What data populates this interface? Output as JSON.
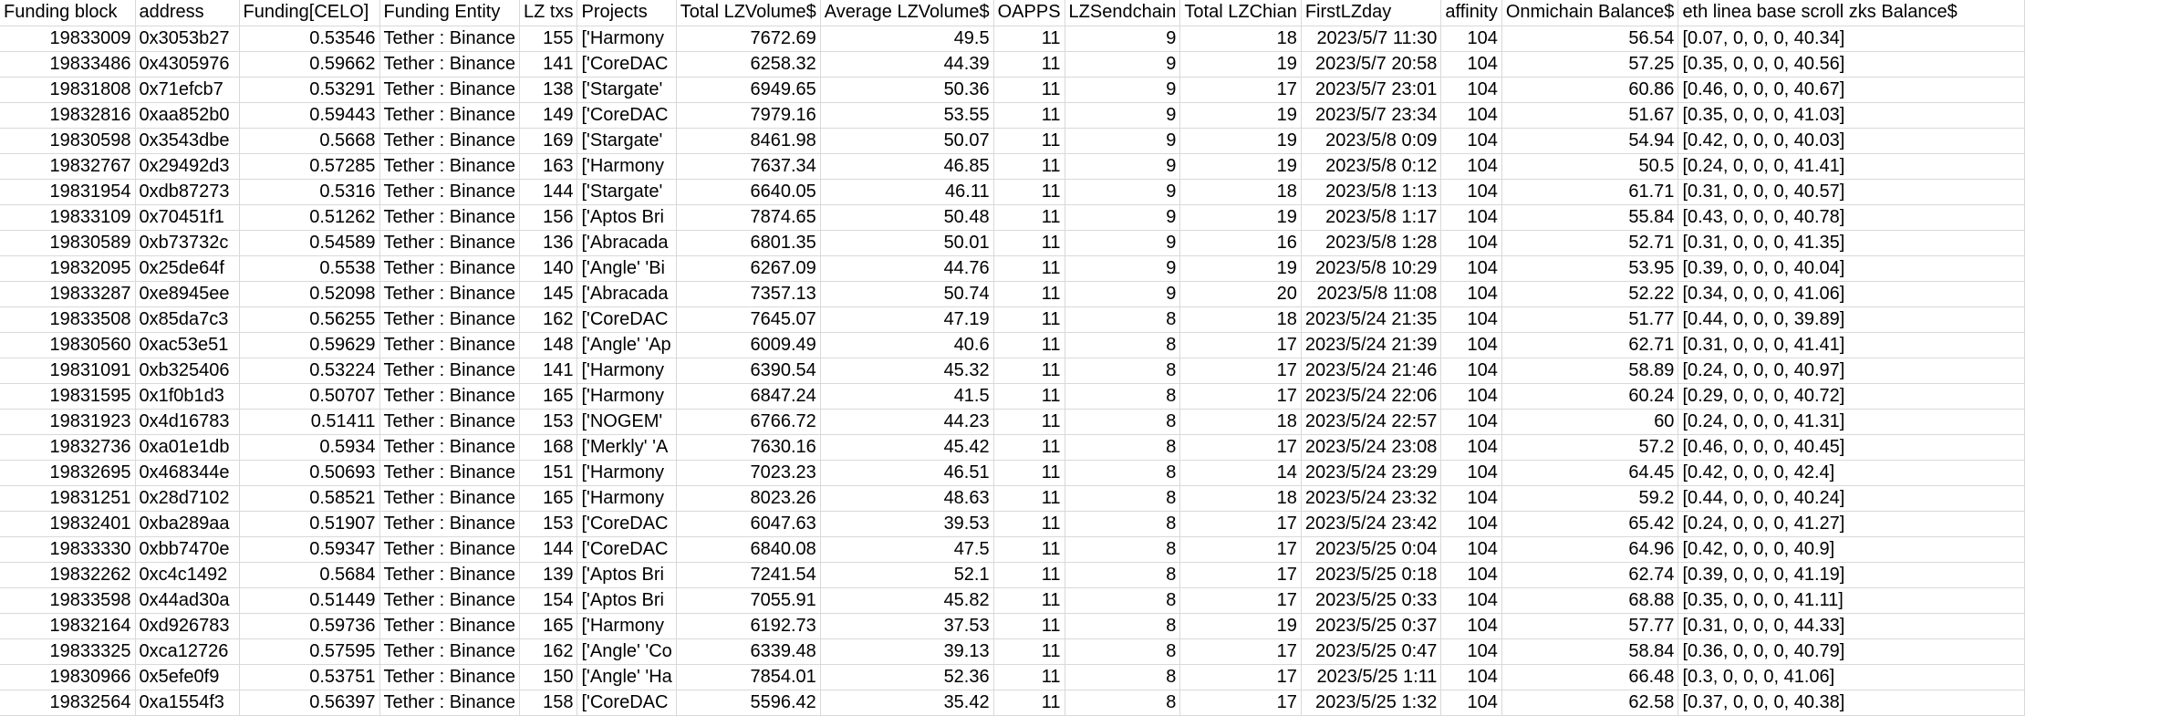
{
  "columns": [
    {
      "key": "funding_block",
      "label": "Funding block",
      "align": "num"
    },
    {
      "key": "address",
      "label": "address",
      "align": "txt"
    },
    {
      "key": "funding_celo",
      "label": "Funding[CELO]",
      "align": "num"
    },
    {
      "key": "funding_entity",
      "label": "Funding Entity",
      "align": "txt"
    },
    {
      "key": "lz_txs",
      "label": "LZ txs",
      "align": "num"
    },
    {
      "key": "projects",
      "label": "Projects",
      "align": "txt"
    },
    {
      "key": "total_lzvolume",
      "label": "Total LZVolume$",
      "align": "num"
    },
    {
      "key": "avg_lzvolume",
      "label": "Average LZVolume$",
      "align": "num"
    },
    {
      "key": "oapps",
      "label": "OAPPS",
      "align": "num"
    },
    {
      "key": "lzsendchain",
      "label": "LZSendchain",
      "align": "num"
    },
    {
      "key": "total_lzchian",
      "label": "Total LZChian",
      "align": "num"
    },
    {
      "key": "firstlzday",
      "label": "FirstLZday",
      "align": "num"
    },
    {
      "key": "affinity",
      "label": "affinity",
      "align": "num"
    },
    {
      "key": "onmichain_balance",
      "label": "Onmichain Balance$",
      "align": "num"
    },
    {
      "key": "chain_balances",
      "label": "eth linea base scroll zks Balance$",
      "align": "txt"
    }
  ],
  "rows": [
    [
      "19833009",
      "0x3053b27",
      "0.53546",
      "Tether : Binance",
      "155",
      "['Harmony",
      "7672.69",
      "49.5",
      "11",
      "9",
      "18",
      "2023/5/7 11:30",
      "104",
      "56.54",
      "[0.07, 0, 0, 0, 40.34]"
    ],
    [
      "19833486",
      "0x4305976",
      "0.59662",
      "Tether : Binance",
      "141",
      "['CoreDAC",
      "6258.32",
      "44.39",
      "11",
      "9",
      "19",
      "2023/5/7 20:58",
      "104",
      "57.25",
      "[0.35, 0, 0, 0, 40.56]"
    ],
    [
      "19831808",
      "0x71efcb7",
      "0.53291",
      "Tether : Binance",
      "138",
      "['Stargate'",
      "6949.65",
      "50.36",
      "11",
      "9",
      "17",
      "2023/5/7 23:01",
      "104",
      "60.86",
      "[0.46, 0, 0, 0, 40.67]"
    ],
    [
      "19832816",
      "0xaa852b0",
      "0.59443",
      "Tether : Binance",
      "149",
      "['CoreDAC",
      "7979.16",
      "53.55",
      "11",
      "9",
      "19",
      "2023/5/7 23:34",
      "104",
      "51.67",
      "[0.35, 0, 0, 0, 41.03]"
    ],
    [
      "19830598",
      "0x3543dbe",
      "0.5668",
      "Tether : Binance",
      "169",
      "['Stargate'",
      "8461.98",
      "50.07",
      "11",
      "9",
      "19",
      "2023/5/8 0:09",
      "104",
      "54.94",
      "[0.42, 0, 0, 0, 40.03]"
    ],
    [
      "19832767",
      "0x29492d3",
      "0.57285",
      "Tether : Binance",
      "163",
      "['Harmony",
      "7637.34",
      "46.85",
      "11",
      "9",
      "19",
      "2023/5/8 0:12",
      "104",
      "50.5",
      "[0.24, 0, 0, 0, 41.41]"
    ],
    [
      "19831954",
      "0xdb87273",
      "0.5316",
      "Tether : Binance",
      "144",
      "['Stargate'",
      "6640.05",
      "46.11",
      "11",
      "9",
      "18",
      "2023/5/8 1:13",
      "104",
      "61.71",
      "[0.31, 0, 0, 0, 40.57]"
    ],
    [
      "19833109",
      "0x70451f1",
      "0.51262",
      "Tether : Binance",
      "156",
      "['Aptos Bri",
      "7874.65",
      "50.48",
      "11",
      "9",
      "19",
      "2023/5/8 1:17",
      "104",
      "55.84",
      "[0.43, 0, 0, 0, 40.78]"
    ],
    [
      "19830589",
      "0xb73732c",
      "0.54589",
      "Tether : Binance",
      "136",
      "['Abracada",
      "6801.35",
      "50.01",
      "11",
      "9",
      "16",
      "2023/5/8 1:28",
      "104",
      "52.71",
      "[0.31, 0, 0, 0, 41.35]"
    ],
    [
      "19832095",
      "0x25de64f",
      "0.5538",
      "Tether : Binance",
      "140",
      "['Angle' 'Bi",
      "6267.09",
      "44.76",
      "11",
      "9",
      "19",
      "2023/5/8 10:29",
      "104",
      "53.95",
      "[0.39, 0, 0, 0, 40.04]"
    ],
    [
      "19833287",
      "0xe8945ee",
      "0.52098",
      "Tether : Binance",
      "145",
      "['Abracada",
      "7357.13",
      "50.74",
      "11",
      "9",
      "20",
      "2023/5/8 11:08",
      "104",
      "52.22",
      "[0.34, 0, 0, 0, 41.06]"
    ],
    [
      "19833508",
      "0x85da7c3",
      "0.56255",
      "Tether : Binance",
      "162",
      "['CoreDAC",
      "7645.07",
      "47.19",
      "11",
      "8",
      "18",
      "2023/5/24 21:35",
      "104",
      "51.77",
      "[0.44, 0, 0, 0, 39.89]"
    ],
    [
      "19830560",
      "0xac53e51",
      "0.59629",
      "Tether : Binance",
      "148",
      "['Angle' 'Ap",
      "6009.49",
      "40.6",
      "11",
      "8",
      "17",
      "2023/5/24 21:39",
      "104",
      "62.71",
      "[0.31, 0, 0, 0, 41.41]"
    ],
    [
      "19831091",
      "0xb325406",
      "0.53224",
      "Tether : Binance",
      "141",
      "['Harmony",
      "6390.54",
      "45.32",
      "11",
      "8",
      "17",
      "2023/5/24 21:46",
      "104",
      "58.89",
      "[0.24, 0, 0, 0, 40.97]"
    ],
    [
      "19831595",
      "0x1f0b1d3",
      "0.50707",
      "Tether : Binance",
      "165",
      "['Harmony",
      "6847.24",
      "41.5",
      "11",
      "8",
      "17",
      "2023/5/24 22:06",
      "104",
      "60.24",
      "[0.29, 0, 0, 0, 40.72]"
    ],
    [
      "19831923",
      "0x4d16783",
      "0.51411",
      "Tether : Binance",
      "153",
      "['NOGEM'",
      "6766.72",
      "44.23",
      "11",
      "8",
      "18",
      "2023/5/24 22:57",
      "104",
      "60",
      "[0.24, 0, 0, 0, 41.31]"
    ],
    [
      "19832736",
      "0xa01e1db",
      "0.5934",
      "Tether : Binance",
      "168",
      "['Merkly' 'A",
      "7630.16",
      "45.42",
      "11",
      "8",
      "17",
      "2023/5/24 23:08",
      "104",
      "57.2",
      "[0.46, 0, 0, 0, 40.45]"
    ],
    [
      "19832695",
      "0x468344e",
      "0.50693",
      "Tether : Binance",
      "151",
      "['Harmony",
      "7023.23",
      "46.51",
      "11",
      "8",
      "14",
      "2023/5/24 23:29",
      "104",
      "64.45",
      "[0.42, 0, 0, 0, 42.4]"
    ],
    [
      "19831251",
      "0x28d7102",
      "0.58521",
      "Tether : Binance",
      "165",
      "['Harmony",
      "8023.26",
      "48.63",
      "11",
      "8",
      "18",
      "2023/5/24 23:32",
      "104",
      "59.2",
      "[0.44, 0, 0, 0, 40.24]"
    ],
    [
      "19832401",
      "0xba289aa",
      "0.51907",
      "Tether : Binance",
      "153",
      "['CoreDAC",
      "6047.63",
      "39.53",
      "11",
      "8",
      "17",
      "2023/5/24 23:42",
      "104",
      "65.42",
      "[0.24, 0, 0, 0, 41.27]"
    ],
    [
      "19833330",
      "0xbb7470e",
      "0.59347",
      "Tether : Binance",
      "144",
      "['CoreDAC",
      "6840.08",
      "47.5",
      "11",
      "8",
      "17",
      "2023/5/25 0:04",
      "104",
      "64.96",
      "[0.42, 0, 0, 0, 40.9]"
    ],
    [
      "19832262",
      "0xc4c1492",
      "0.5684",
      "Tether : Binance",
      "139",
      "['Aptos Bri",
      "7241.54",
      "52.1",
      "11",
      "8",
      "17",
      "2023/5/25 0:18",
      "104",
      "62.74",
      "[0.39, 0, 0, 0, 41.19]"
    ],
    [
      "19833598",
      "0x44ad30a",
      "0.51449",
      "Tether : Binance",
      "154",
      "['Aptos Bri",
      "7055.91",
      "45.82",
      "11",
      "8",
      "17",
      "2023/5/25 0:33",
      "104",
      "68.88",
      "[0.35, 0, 0, 0, 41.11]"
    ],
    [
      "19832164",
      "0xd926783",
      "0.59736",
      "Tether : Binance",
      "165",
      "['Harmony",
      "6192.73",
      "37.53",
      "11",
      "8",
      "19",
      "2023/5/25 0:37",
      "104",
      "57.77",
      "[0.31, 0, 0, 0, 44.33]"
    ],
    [
      "19833325",
      "0xca12726",
      "0.57595",
      "Tether : Binance",
      "162",
      "['Angle' 'Co",
      "6339.48",
      "39.13",
      "11",
      "8",
      "17",
      "2023/5/25 0:47",
      "104",
      "58.84",
      "[0.36, 0, 0, 0, 40.79]"
    ],
    [
      "19830966",
      "0x5efe0f9",
      "0.53751",
      "Tether : Binance",
      "150",
      "['Angle' 'Ha",
      "7854.01",
      "52.36",
      "11",
      "8",
      "17",
      "2023/5/25 1:11",
      "104",
      "66.48",
      "[0.3, 0, 0, 0, 41.06]"
    ],
    [
      "19832564",
      "0xa1554f3",
      "0.56397",
      "Tether : Binance",
      "158",
      "['CoreDAC",
      "5596.42",
      "35.42",
      "11",
      "8",
      "17",
      "2023/5/25 1:32",
      "104",
      "62.58",
      "[0.37, 0, 0, 0, 40.38]"
    ]
  ]
}
